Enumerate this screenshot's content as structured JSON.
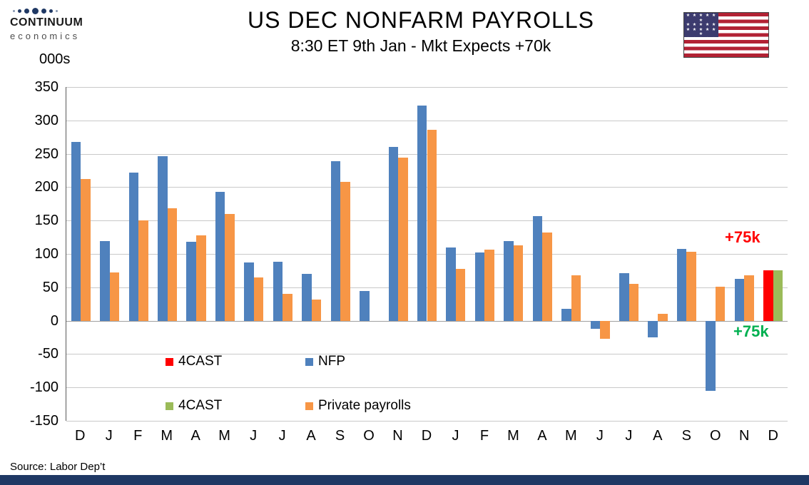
{
  "header": {
    "logo_line1": "CONTINUUM",
    "logo_line2": "economics",
    "title": "US DEC NONFARM PAYROLLS",
    "subtitle": "8:30 ET 9th Jan - Mkt Expects +70k"
  },
  "axis_unit": "000s",
  "source": "Source: Labor Dep’t",
  "annotations": {
    "nfp_forecast": {
      "text": "+75k",
      "color": "#FF0000"
    },
    "private_forecast": {
      "text": "+75k",
      "color": "#00B050"
    }
  },
  "legend": [
    {
      "label": "4CAST",
      "color": "#FF0000"
    },
    {
      "label": "NFP",
      "color": "#4F81BD"
    },
    {
      "label": "4CAST",
      "color": "#9BBB59"
    },
    {
      "label": "Private payrolls",
      "color": "#F79646"
    }
  ],
  "chart_data": {
    "type": "bar",
    "title": "US DEC NONFARM PAYROLLS",
    "subtitle": "8:30 ET 9th Jan - Mkt Expects +70k",
    "xlabel": "",
    "ylabel": "000s",
    "ylim": [
      -150,
      350
    ],
    "ytick_step": 50,
    "grid": true,
    "legend_position": "inside-bottom-left",
    "categories": [
      "D",
      "J",
      "F",
      "M",
      "A",
      "M",
      "J",
      "J",
      "A",
      "S",
      "O",
      "N",
      "D",
      "J",
      "F",
      "M",
      "A",
      "M",
      "J",
      "J",
      "A",
      "S",
      "O",
      "N",
      "D"
    ],
    "series": [
      {
        "name": "NFP",
        "color": "#4F81BD",
        "values": [
          268,
          119,
          222,
          246,
          118,
          193,
          87,
          88,
          70,
          239,
          44,
          260,
          322,
          110,
          102,
          119,
          157,
          18,
          -12,
          71,
          -25,
          107,
          -105,
          63,
          null
        ]
      },
      {
        "name": "Private payrolls",
        "color": "#F79646",
        "values": [
          212,
          72,
          150,
          168,
          128,
          160,
          65,
          40,
          32,
          208,
          null,
          244,
          286,
          78,
          106,
          113,
          132,
          68,
          -27,
          55,
          10,
          103,
          51,
          68,
          null
        ]
      },
      {
        "name": "4CAST NFP forecast",
        "color": "#FF0000",
        "values": [
          null,
          null,
          null,
          null,
          null,
          null,
          null,
          null,
          null,
          null,
          null,
          null,
          null,
          null,
          null,
          null,
          null,
          null,
          null,
          null,
          null,
          null,
          null,
          null,
          75
        ]
      },
      {
        "name": "4CAST Private forecast",
        "color": "#9BBB59",
        "values": [
          null,
          null,
          null,
          null,
          null,
          null,
          null,
          null,
          null,
          null,
          null,
          null,
          null,
          null,
          null,
          null,
          null,
          null,
          null,
          null,
          null,
          null,
          null,
          null,
          75
        ]
      }
    ]
  }
}
